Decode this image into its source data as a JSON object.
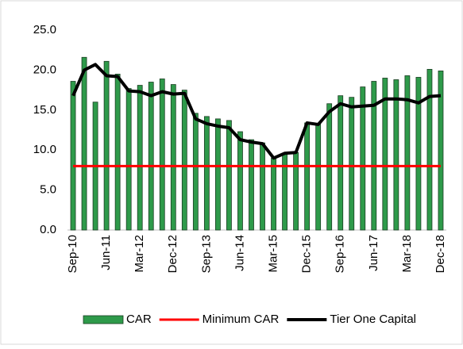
{
  "chart_data": {
    "type": "bar-line",
    "categories": [
      "Sep-10",
      null,
      null,
      "Jun-11",
      null,
      null,
      "Mar-12",
      null,
      null,
      "Dec-12",
      null,
      null,
      "Sep-13",
      null,
      null,
      "Jun-14",
      null,
      null,
      "Mar-15",
      null,
      null,
      "Dec-15",
      null,
      null,
      "Sep-16",
      null,
      null,
      "Jun-17",
      null,
      null,
      "Mar-18",
      null,
      null,
      "Dec-18"
    ],
    "series": [
      {
        "name": "CAR",
        "type": "bar",
        "color": "#2e9a4a",
        "values": [
          18.6,
          21.6,
          16.0,
          21.1,
          19.5,
          17.7,
          18.1,
          18.5,
          18.9,
          18.2,
          17.5,
          14.6,
          14.2,
          13.9,
          13.7,
          12.3,
          11.3,
          10.9,
          9.0,
          9.6,
          9.7,
          13.4,
          13.3,
          15.8,
          16.8,
          16.6,
          17.9,
          18.6,
          19.0,
          18.8,
          19.3,
          19.1,
          20.1,
          19.9
        ]
      },
      {
        "name": "Minimum CAR",
        "type": "line",
        "color": "#ff0000",
        "values": [
          8,
          8,
          8,
          8,
          8,
          8,
          8,
          8,
          8,
          8,
          8,
          8,
          8,
          8,
          8,
          8,
          8,
          8,
          8,
          8,
          8,
          8,
          8,
          8,
          8,
          8,
          8,
          8,
          8,
          8,
          8,
          8,
          8,
          8
        ]
      },
      {
        "name": "Tier One Capital",
        "type": "line",
        "color": "#000000",
        "values": [
          16.8,
          20.0,
          20.7,
          19.3,
          19.2,
          17.4,
          17.3,
          16.8,
          17.3,
          17.0,
          17.1,
          13.9,
          13.3,
          13.0,
          12.8,
          11.3,
          11.0,
          10.8,
          9.0,
          9.6,
          9.7,
          13.4,
          13.2,
          14.8,
          15.8,
          15.4,
          15.5,
          15.6,
          16.4,
          16.4,
          16.3,
          15.9,
          16.7,
          16.8
        ]
      }
    ],
    "ylim": [
      0,
      25
    ],
    "yticks": [
      {
        "value": 0,
        "label": "0.0"
      },
      {
        "value": 5,
        "label": "5.0"
      },
      {
        "value": 10,
        "label": "10.0"
      },
      {
        "value": 15,
        "label": "15.0"
      },
      {
        "value": 20,
        "label": "20.0"
      },
      {
        "value": 25,
        "label": "25.0"
      }
    ],
    "legend": "bottom"
  }
}
